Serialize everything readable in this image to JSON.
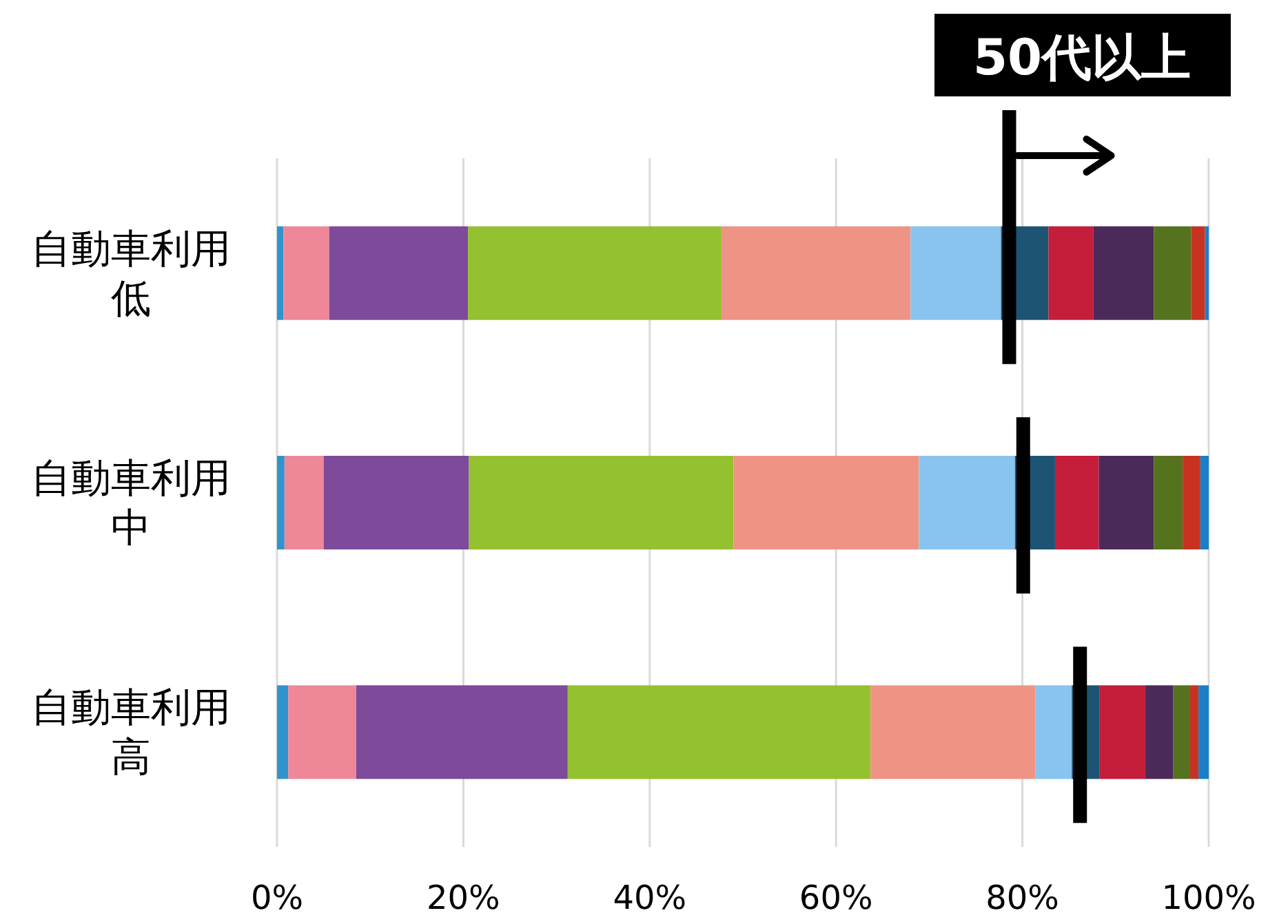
{
  "chart_data": {
    "type": "bar",
    "orientation": "horizontal",
    "stacked": true,
    "categories": [
      "自動車利用低",
      "自動車利用中",
      "自動車利用高"
    ],
    "series": [
      {
        "color": "#3193cb",
        "values": [
          0.7,
          0.8,
          1.2
        ]
      },
      {
        "color": "#ee8899",
        "values": [
          4.9,
          4.2,
          7.3
        ]
      },
      {
        "color": "#7e4a9a",
        "values": [
          14.9,
          15.6,
          22.7
        ]
      },
      {
        "color": "#93c12f",
        "values": [
          27.2,
          28.4,
          32.5
        ]
      },
      {
        "color": "#ef9485",
        "values": [
          20.3,
          19.9,
          17.7
        ]
      },
      {
        "color": "#88c4ee",
        "values": [
          9.7,
          10.3,
          3.9
        ]
      },
      {
        "color": "#1d5473",
        "values": [
          5.1,
          4.3,
          3.0
        ]
      },
      {
        "color": "#c41e3a",
        "values": [
          4.8,
          4.7,
          4.9
        ]
      },
      {
        "color": "#4b2a5a",
        "values": [
          6.5,
          5.9,
          3.0
        ]
      },
      {
        "color": "#55731f",
        "values": [
          4.0,
          3.1,
          1.8
        ]
      },
      {
        "color": "#c83220",
        "values": [
          1.5,
          1.9,
          0.9
        ]
      },
      {
        "color": "#1a7fc7",
        "values": [
          0.4,
          0.9,
          1.1
        ]
      }
    ],
    "xlim": [
      0,
      100
    ],
    "xticks": [
      {
        "value": 0,
        "label": "0%"
      },
      {
        "value": 20,
        "label": "20%"
      },
      {
        "value": 40,
        "label": "40%"
      },
      {
        "value": 60,
        "label": "60%"
      },
      {
        "value": 80,
        "label": "80%"
      },
      {
        "value": 100,
        "label": "100%"
      }
    ],
    "grid": "x",
    "annotations": [
      "50代以上"
    ]
  }
}
